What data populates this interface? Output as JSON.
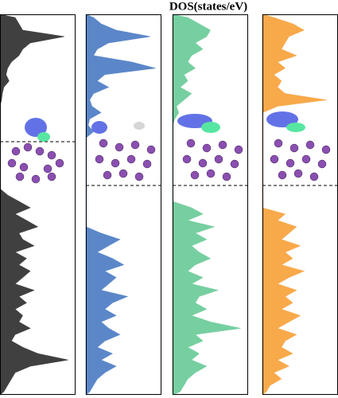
{
  "chart_data": {
    "type": "area",
    "title": "DOS(states/eV)",
    "categories": [
      null,
      null,
      null,
      null,
      null,
      null,
      null,
      null,
      null,
      null,
      null,
      null,
      null,
      null,
      null,
      null,
      null,
      null,
      null,
      null,
      null,
      null,
      null,
      null,
      null,
      null,
      null,
      null,
      null,
      null,
      null,
      null,
      null,
      null,
      null,
      null,
      null,
      null,
      null,
      null,
      null,
      null,
      null,
      null,
      null,
      null,
      null,
      null,
      null,
      null,
      null,
      null,
      null,
      null,
      null,
      null,
      null,
      null,
      null,
      null
    ],
    "xlim": [
      0,
      100
    ],
    "series": [
      {
        "color": "#404040",
        "values": [
          20,
          25,
          30,
          85,
          40,
          30,
          25,
          15,
          10,
          8,
          12,
          5,
          3,
          2,
          0,
          0,
          0,
          0,
          0,
          0,
          0,
          0,
          0,
          0,
          0,
          0,
          0,
          0,
          10,
          25,
          40,
          20,
          35,
          50,
          25,
          30,
          45,
          20,
          35,
          25,
          40,
          30,
          20,
          45,
          25,
          35,
          20,
          30,
          25,
          40,
          20,
          15,
          30,
          50,
          90,
          40,
          20,
          15,
          10,
          5
        ]
      },
      {
        "color": "#5b87c9",
        "values": [
          10,
          20,
          40,
          85,
          30,
          15,
          10,
          60,
          92,
          25,
          15,
          30,
          10,
          5,
          8,
          20,
          5,
          3,
          10,
          0,
          0,
          0,
          0,
          0,
          0,
          0,
          0,
          0,
          0,
          0,
          0,
          0,
          0,
          0,
          20,
          45,
          30,
          15,
          35,
          50,
          25,
          40,
          30,
          20,
          55,
          35,
          25,
          40,
          20,
          30,
          45,
          25,
          15,
          35,
          20,
          40,
          25,
          15,
          10,
          5
        ]
      },
      {
        "color": "#76cfa0",
        "values": [
          20,
          35,
          50,
          45,
          30,
          40,
          25,
          20,
          30,
          15,
          20,
          10,
          25,
          15,
          5,
          8,
          3,
          0,
          0,
          0,
          0,
          0,
          0,
          0,
          0,
          0,
          0,
          0,
          0,
          0,
          25,
          40,
          20,
          55,
          30,
          45,
          25,
          35,
          50,
          30,
          20,
          40,
          25,
          60,
          35,
          30,
          45,
          25,
          50,
          90,
          30,
          40,
          20,
          35,
          25,
          45,
          30,
          20,
          15,
          10
        ]
      },
      {
        "color": "#f8a94a",
        "values": [
          15,
          40,
          55,
          35,
          30,
          25,
          45,
          20,
          30,
          15,
          25,
          20,
          30,
          85,
          20,
          0,
          0,
          0,
          0,
          0,
          0,
          0,
          0,
          0,
          0,
          0,
          0,
          0,
          0,
          0,
          0,
          30,
          20,
          45,
          35,
          25,
          50,
          30,
          40,
          25,
          55,
          35,
          20,
          45,
          30,
          40,
          25,
          50,
          35,
          20,
          45,
          30,
          25,
          40,
          20,
          35,
          15,
          25,
          10,
          5
        ]
      }
    ]
  }
}
